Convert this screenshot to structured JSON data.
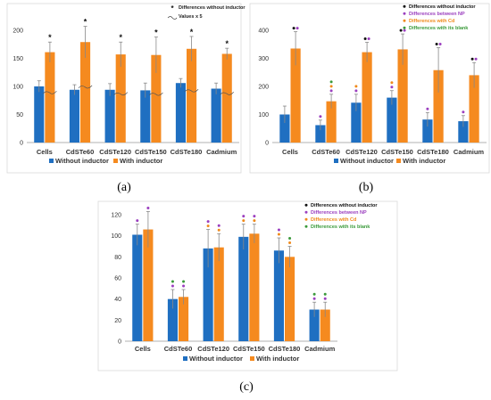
{
  "colors": {
    "without": "#1f6fc1",
    "with": "#f58a1f",
    "black_dot": "#111111",
    "purple_dot": "#9b3fbf",
    "orange_dot": "#f08a1a",
    "green_dot": "#3a9a3a",
    "error_bar": "#888888",
    "axis": "#999999"
  },
  "chart_data": [
    {
      "type": "bar",
      "panel_label": "(a)",
      "categories": [
        "Cells",
        "CdSTe60",
        "CdSTe120",
        "CdSTe150",
        "CdSTe180",
        "Cadmium"
      ],
      "ylim": [
        0,
        200
      ],
      "yticks": [
        0,
        50,
        100,
        150,
        200
      ],
      "series": [
        {
          "name": "Without inductor",
          "values": [
            100,
            94,
            94,
            93,
            106,
            96
          ],
          "errors": [
            10,
            9,
            11,
            13,
            8,
            10
          ]
        },
        {
          "name": "With inductor",
          "values": [
            161,
            179,
            157,
            156,
            167,
            158
          ],
          "errors": [
            18,
            28,
            22,
            32,
            22,
            10
          ]
        }
      ],
      "markers_with": [
        [
          "black"
        ],
        [
          "black"
        ],
        [
          "black"
        ],
        [
          "black"
        ],
        [
          "black"
        ],
        [
          "black"
        ]
      ],
      "legend_notes": [
        "Differences without inductor",
        "Values x 5"
      ],
      "break_marks": true
    },
    {
      "type": "bar",
      "panel_label": "(b)",
      "categories": [
        "Cells",
        "CdSTe60",
        "CdSTe120",
        "CdSTe150",
        "CdSTe180",
        "Cadmium"
      ],
      "ylim": [
        0,
        400
      ],
      "yticks": [
        0,
        100,
        200,
        300,
        400
      ],
      "series": [
        {
          "name": "Without inductor",
          "values": [
            100,
            62,
            142,
            160,
            82,
            76
          ],
          "errors": [
            30,
            18,
            30,
            25,
            25,
            20
          ]
        },
        {
          "name": "With inductor",
          "values": [
            335,
            147,
            322,
            332,
            258,
            240
          ],
          "errors": [
            60,
            25,
            35,
            55,
            80,
            45
          ]
        }
      ],
      "markers_without": [
        [],
        [
          "purple"
        ],
        [
          "purple",
          "orange"
        ],
        [
          "purple",
          "orange"
        ],
        [
          "purple"
        ],
        [
          "purple"
        ]
      ],
      "markers_with": [
        [
          "black",
          "purple"
        ],
        [
          "purple",
          "orange",
          "green"
        ],
        [
          "black",
          "purple"
        ],
        [
          "black",
          "purple"
        ],
        [
          "black",
          "purple"
        ],
        [
          "black",
          "purple"
        ]
      ],
      "legend_notes": [
        "Differences without inductor",
        "Differences between NP",
        "Differences with Cd",
        "Differences with its blank"
      ]
    },
    {
      "type": "bar",
      "panel_label": "(c)",
      "categories": [
        "Cells",
        "CdSTe60",
        "CdSTe120",
        "CdSTe150",
        "CdSTe180",
        "Cadmium"
      ],
      "ylim": [
        0,
        120
      ],
      "yticks": [
        0,
        20,
        40,
        60,
        80,
        100,
        120
      ],
      "series": [
        {
          "name": "Without inductor",
          "values": [
            101,
            40,
            88,
            99,
            86,
            30
          ],
          "errors": [
            10,
            9,
            18,
            12,
            12,
            7
          ]
        },
        {
          "name": "With inductor",
          "values": [
            106,
            42,
            89,
            102,
            80,
            30
          ],
          "errors": [
            17,
            7,
            13,
            9,
            10,
            7
          ]
        }
      ],
      "markers_without": [
        [
          "purple"
        ],
        [
          "purple",
          "green"
        ],
        [
          "orange",
          "purple"
        ],
        [
          "orange",
          "purple"
        ],
        [
          "orange",
          "purple"
        ],
        [
          "purple",
          "green"
        ]
      ],
      "markers_with": [
        [
          "purple"
        ],
        [
          "purple",
          "green"
        ],
        [
          "orange",
          "purple"
        ],
        [
          "orange",
          "purple"
        ],
        [
          "orange",
          "green"
        ],
        [
          "purple",
          "green"
        ]
      ],
      "legend_notes": [
        "Differences without inductor",
        "Differences between NP",
        "Differences with Cd",
        "Differences with its blank"
      ]
    }
  ]
}
